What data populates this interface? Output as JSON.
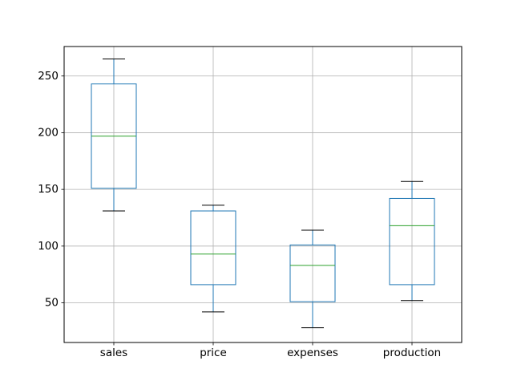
{
  "chart_data": {
    "type": "box",
    "title": "",
    "xlabel": "",
    "ylabel": "",
    "categories": [
      "sales",
      "price",
      "expenses",
      "production"
    ],
    "boxes": [
      {
        "name": "sales",
        "whisker_low": 131,
        "q1": 151,
        "median": 197,
        "q3": 243,
        "whisker_high": 265
      },
      {
        "name": "price",
        "whisker_low": 42,
        "q1": 66,
        "median": 93,
        "q3": 131,
        "whisker_high": 136
      },
      {
        "name": "expenses",
        "whisker_low": 28,
        "q1": 51,
        "median": 83,
        "q3": 101,
        "whisker_high": 114
      },
      {
        "name": "production",
        "whisker_low": 52,
        "q1": 66,
        "median": 118,
        "q3": 142,
        "whisker_high": 157
      }
    ],
    "ylim": [
      15,
      276
    ],
    "yticks": [
      50,
      100,
      150,
      200,
      250
    ],
    "grid": true,
    "legend": "none",
    "colors": {
      "box": "#1f77b4",
      "median": "#2ca02c",
      "whisker_cap": "#000000",
      "grid": "#b0b0b0"
    }
  }
}
